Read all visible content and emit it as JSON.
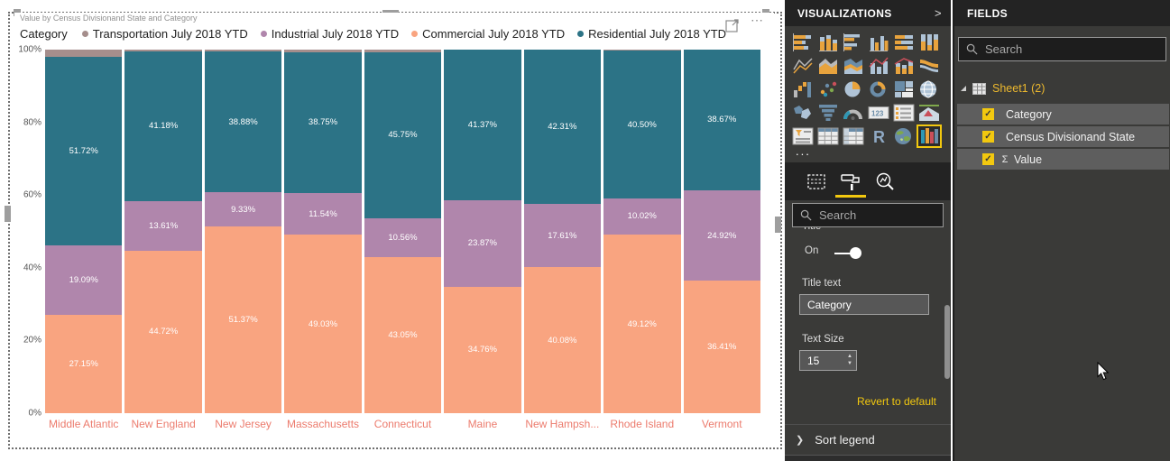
{
  "visual": {
    "header_title": "Value by Census Divisionand State and Category",
    "more_options": "...",
    "focus_icon": "focus-mode"
  },
  "chart_data": {
    "type": "bar",
    "variant": "100-percent-stacked-column",
    "title": "Value by Census Divisionand State and Category",
    "legend_title": "Category",
    "legend_position": "top",
    "grid": false,
    "ylim": [
      0,
      100
    ],
    "y_ticks": [
      "100%",
      "80%",
      "60%",
      "40%",
      "20%",
      "0%"
    ],
    "categories": [
      "Middle Atlantic",
      "New England",
      "New Jersey",
      "Massachusetts",
      "Connecticut",
      "Maine",
      "New Hampsh...",
      "Rhode Island",
      "Vermont"
    ],
    "series": [
      {
        "name": "Commercial July 2018 YTD",
        "color": "#F9A480",
        "values": [
          27.15,
          44.72,
          51.37,
          49.03,
          43.05,
          34.76,
          40.08,
          49.12,
          36.41
        ]
      },
      {
        "name": "Industrial July 2018 YTD",
        "color": "#B086AC",
        "values": [
          19.09,
          13.61,
          9.33,
          11.54,
          10.56,
          23.87,
          17.61,
          10.02,
          24.92
        ]
      },
      {
        "name": "Residential July 2018 YTD",
        "color": "#2C7386",
        "values": [
          51.72,
          41.18,
          38.88,
          38.75,
          45.75,
          41.37,
          42.31,
          40.5,
          38.67
        ]
      },
      {
        "name": "Transportation July 2018 YTD",
        "color": "#A58E8C",
        "values": [
          2.04,
          0.49,
          0.42,
          0.68,
          0.64,
          0,
          0,
          0.36,
          0
        ]
      }
    ],
    "legend_order": [
      "Transportation July 2018 YTD",
      "Industrial July 2018 YTD",
      "Commercial July 2018 YTD",
      "Residential July 2018 YTD"
    ],
    "label_min_pct": 3,
    "axis_label_color": "#ec7b6d"
  },
  "visualizations_panel": {
    "title": "VISUALIZATIONS",
    "collapse_chevron": ">",
    "more_label": "...",
    "icons": [
      {
        "name": "stacked-bar-chart"
      },
      {
        "name": "stacked-column-chart"
      },
      {
        "name": "clustered-bar-chart"
      },
      {
        "name": "clustered-column-chart"
      },
      {
        "name": "100-stacked-bar-chart"
      },
      {
        "name": "100-stacked-column-chart"
      },
      {
        "name": "line-chart"
      },
      {
        "name": "area-chart"
      },
      {
        "name": "stacked-area-chart"
      },
      {
        "name": "line-and-clustered-column-chart"
      },
      {
        "name": "line-and-stacked-column-chart"
      },
      {
        "name": "ribbon-chart"
      },
      {
        "name": "waterfall-chart"
      },
      {
        "name": "scatter-chart"
      },
      {
        "name": "pie-chart"
      },
      {
        "name": "donut-chart"
      },
      {
        "name": "treemap"
      },
      {
        "name": "map"
      },
      {
        "name": "filled-map"
      },
      {
        "name": "funnel"
      },
      {
        "name": "gauge"
      },
      {
        "name": "card"
      },
      {
        "name": "multi-row-card"
      },
      {
        "name": "kpi"
      },
      {
        "name": "slicer"
      },
      {
        "name": "table"
      },
      {
        "name": "matrix"
      },
      {
        "name": "r-script-visual"
      },
      {
        "name": "arcgis-map"
      },
      {
        "name": "custom-stacked-bar-visual",
        "selected": true
      }
    ],
    "tabs": [
      {
        "name": "fields-tab",
        "active": false
      },
      {
        "name": "format-tab",
        "active": true
      },
      {
        "name": "analytics-tab",
        "active": false
      }
    ],
    "search_placeholder": "Search",
    "format": {
      "clipped_section_label": "Title",
      "toggle_label": "On",
      "toggle_state": "on",
      "title_text_label": "Title text",
      "title_text_value": "Category",
      "text_size_label": "Text Size",
      "text_size_value": "15",
      "revert_label": "Revert to default",
      "sort_legend_label": "Sort legend"
    }
  },
  "fields_panel": {
    "title": "FIELDS",
    "search_placeholder": "Search",
    "table_name": "Sheet1 (2)",
    "fields": [
      {
        "label": "Category",
        "checked": true,
        "sigma": false
      },
      {
        "label": "Census Divisionand State",
        "checked": true,
        "sigma": false
      },
      {
        "label": "Value",
        "checked": true,
        "sigma": true
      }
    ]
  },
  "colors": {
    "accent_yellow": "#F2C80F",
    "pane_bg": "#3a3a38",
    "pane_header_bg": "#232323",
    "field_row_bg": "#5e5e5e"
  }
}
